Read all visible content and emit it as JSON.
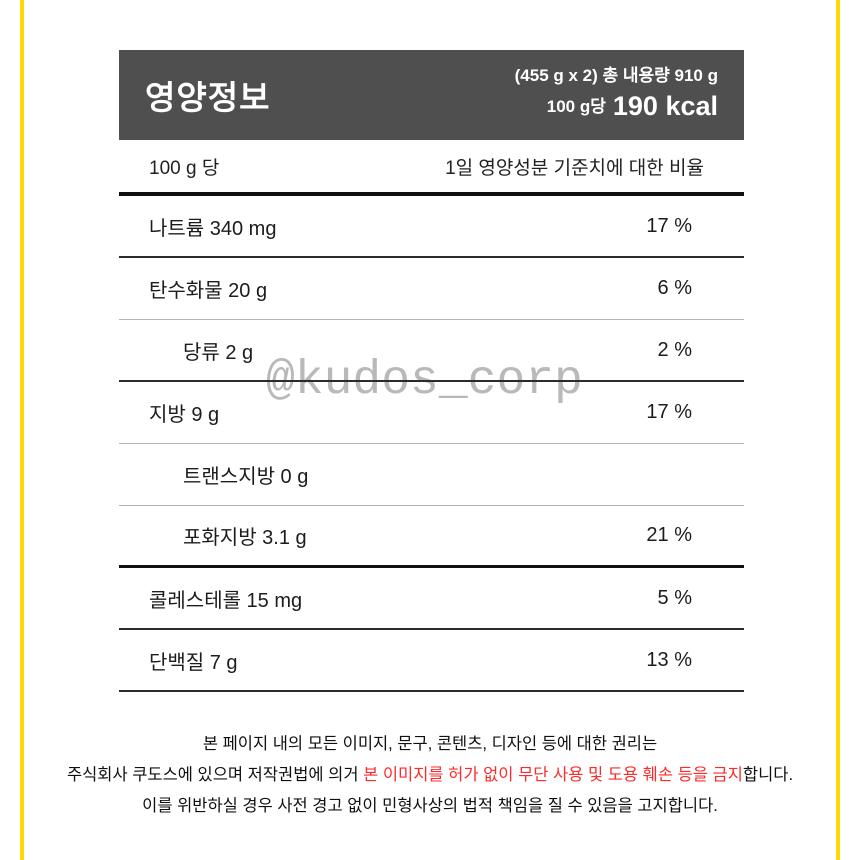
{
  "header": {
    "title": "영양정보",
    "serving_info": "(455 g x 2) 총 내용량 910 g",
    "per_label": "100 g당",
    "calories": "190 kcal"
  },
  "table": {
    "column_header": {
      "left": "100 g 당",
      "right": "1일 영양성분 기준치에 대한 비율"
    },
    "rows": [
      {
        "label": "나트륨 340 mg",
        "value": "17 %"
      },
      {
        "label": "탄수화물 20 g",
        "value": "6 %"
      },
      {
        "label": "당류 2 g",
        "value": "2 %"
      },
      {
        "label": "지방 9 g",
        "value": "17 %"
      },
      {
        "label": "트랜스지방 0 g",
        "value": ""
      },
      {
        "label": "포화지방 3.1 g",
        "value": "21 %"
      },
      {
        "label": "콜레스테롤 15 mg",
        "value": "5 %"
      },
      {
        "label": "단백질 7 g",
        "value": "13 %"
      }
    ]
  },
  "watermark": "@kudos_corp",
  "footer": {
    "line1": "본 페이지 내의 모든 이미지, 문구, 콘텐츠, 디자인 등에 대한 권리는",
    "line2_prefix": "주식회사 쿠도스에 있으며 저작권법에 의거 ",
    "line2_red": "본 이미지를 허가 없이 무단 사용 및 도용 훼손 등을 금지",
    "line2_suffix": "합니다.",
    "line3": "이를 위반하실 경우 사전 경고 없이 민형사상의 법적 책임을 질 수 있음을 고지합니다."
  },
  "colors": {
    "accent_border": "#FFD60A",
    "header_bg": "#4f4f4f",
    "warning_red": "#FB2B2B",
    "watermark_gray": "#B9B9B9"
  }
}
